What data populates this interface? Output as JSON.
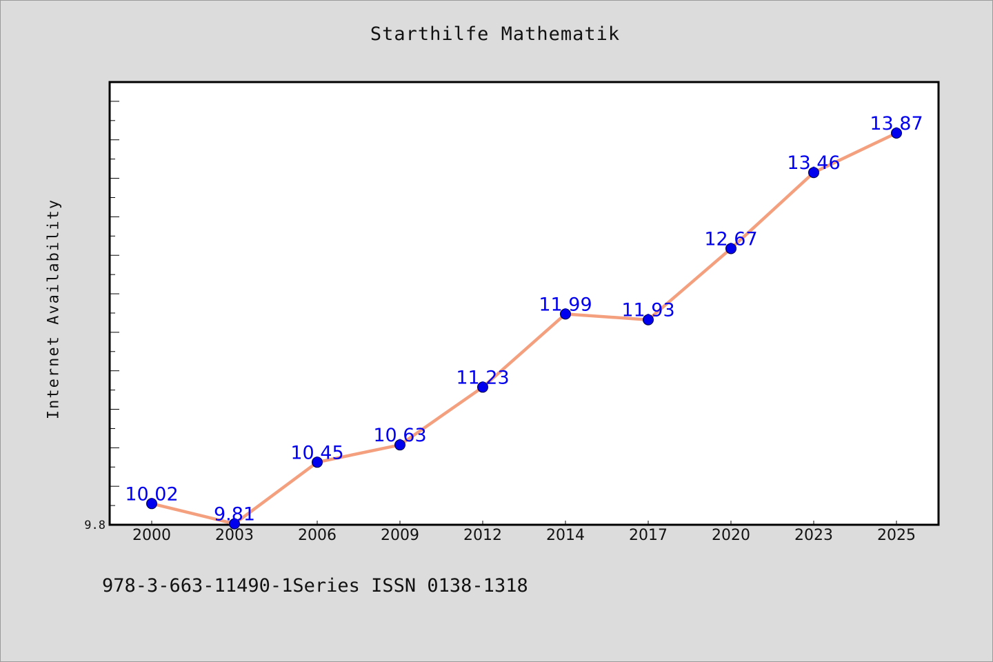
{
  "title": "Starthilfe Mathematik",
  "footer": "978-3-663-11490-1Series ISSN 0138-1318",
  "colors": {
    "background": "#dcdcdc",
    "plot_area": "#ffffff",
    "line": "#f4a07f",
    "marker": "#0000ee",
    "data_label": "#0000ee"
  },
  "chart_data": {
    "type": "line",
    "title": "Starthilfe Mathematik",
    "xlabel": "",
    "ylabel": "Internet Availability",
    "categories": [
      "2000",
      "2003",
      "2006",
      "2009",
      "2012",
      "2014",
      "2017",
      "2020",
      "2023",
      "2025"
    ],
    "series": [
      {
        "values": [
          10.02,
          9.81,
          10.45,
          10.63,
          11.23,
          11.99,
          11.93,
          12.67,
          13.46,
          13.87
        ],
        "labels": [
          "10.02",
          "9.81",
          "10.45",
          "10.63",
          "11.23",
          "11.99",
          "11.93",
          "12.67",
          "13.46",
          "13.87"
        ]
      }
    ],
    "ylim": [
      9.8,
      14.4
    ],
    "yticks_labeled": [
      "9.8"
    ],
    "grid": false,
    "legend": "none"
  }
}
